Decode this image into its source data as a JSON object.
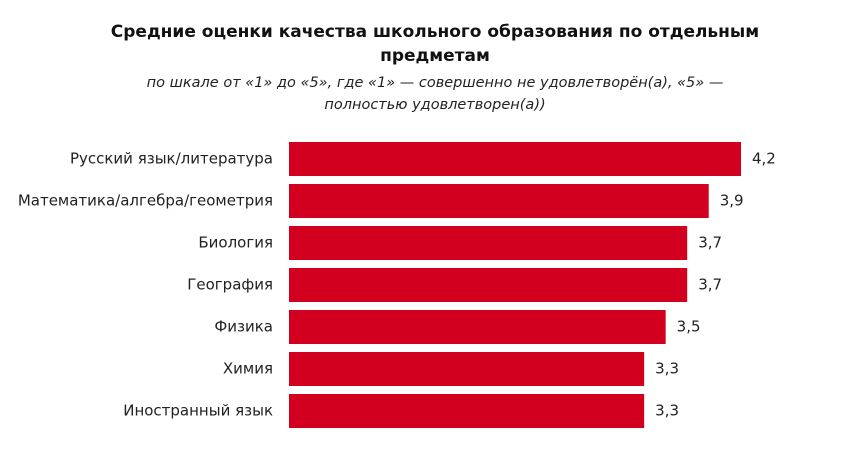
{
  "chart_data": {
    "type": "bar",
    "orientation": "horizontal",
    "title": "Средние оценки качества школьного образования по отдельным предметам",
    "subtitle": "по шкале от «1» до «5», где «1» — совершенно не удовлетворён(а), «5» — полностью удовлетворен(а))",
    "categories": [
      "Русский язык/литература",
      "Математика/алгебра/геометрия",
      "Биология",
      "География",
      "Физика",
      "Химия",
      "Иностранный язык"
    ],
    "values": [
      4.2,
      3.9,
      3.7,
      3.7,
      3.5,
      3.3,
      3.3
    ],
    "value_labels": [
      "4,2",
      "3,9",
      "3,7",
      "3,7",
      "3,5",
      "3,3",
      "3,3"
    ],
    "color": "#d2001e"
  }
}
